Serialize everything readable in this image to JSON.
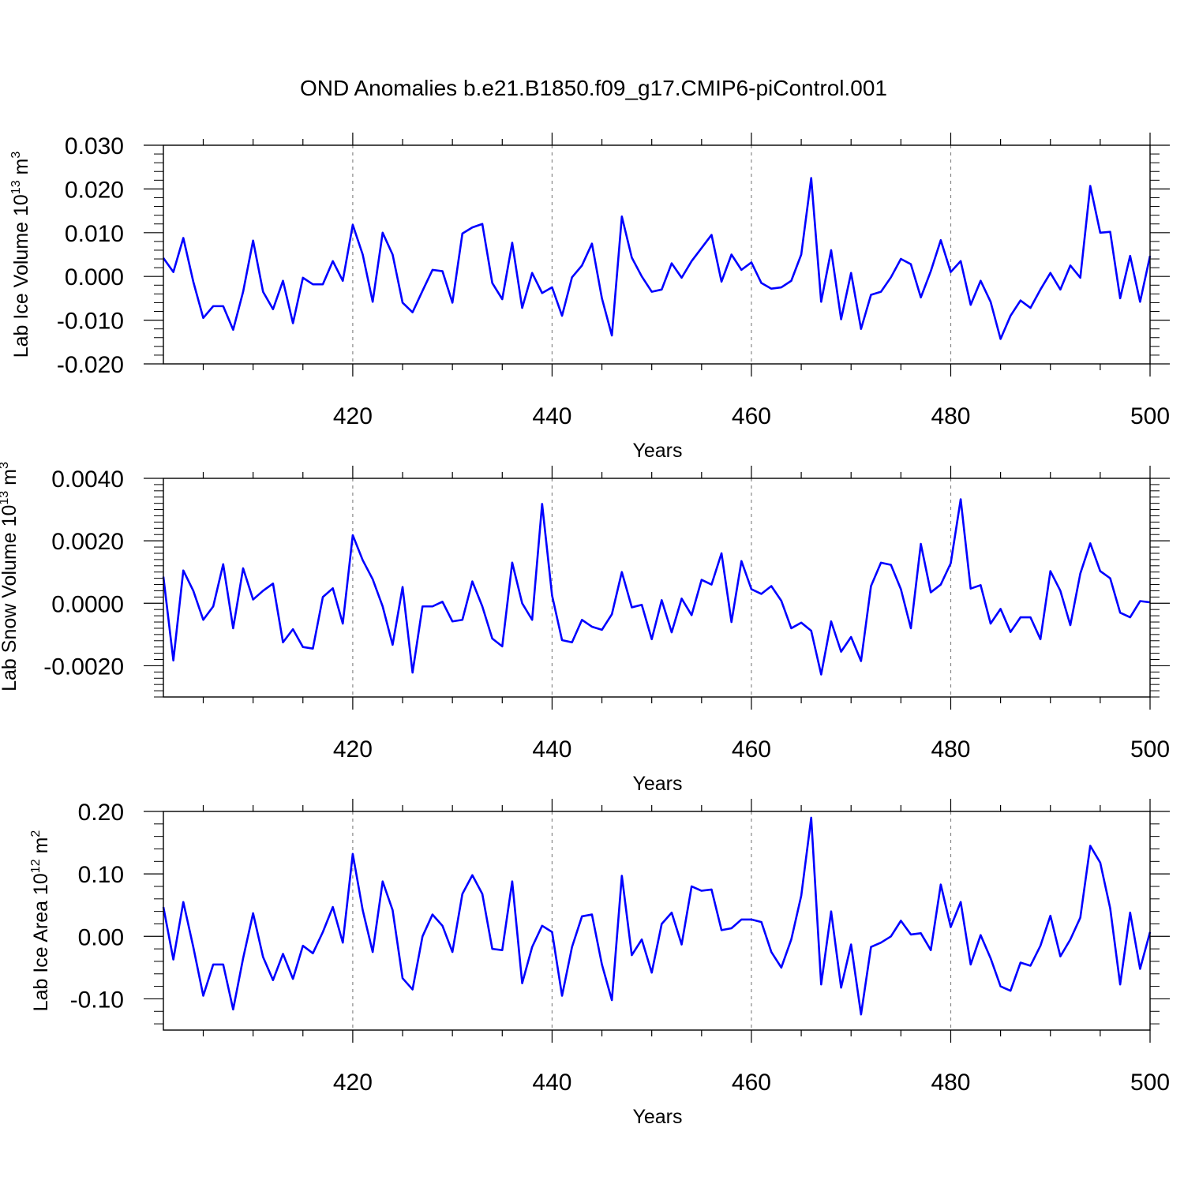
{
  "title": "OND Anomalies b.e21.B1850.f09_g17.CMIP6-piControl.001",
  "colors": {
    "line": "#0000ff",
    "axis": "#000000",
    "grid": "#888888"
  },
  "chart_data": [
    {
      "type": "line",
      "ylabel": "Lab Ice Volume 10",
      "ylabel_exp": "13",
      "ylabel_unit": " m",
      "ylabel_unit_exp": "3",
      "xlabel": "Years",
      "xlim": [
        401,
        500
      ],
      "ylim": [
        -0.02,
        0.03
      ],
      "xticks": [
        420,
        440,
        460,
        480,
        500
      ],
      "xtick_labels": [
        "420",
        "440",
        "460",
        "480",
        "500"
      ],
      "yticks": [
        -0.02,
        -0.01,
        0.0,
        0.01,
        0.02,
        0.03
      ],
      "ytick_labels": [
        "-0.020",
        "-0.010",
        "0.000",
        "0.010",
        "0.020",
        "0.030"
      ],
      "yminor": [
        -0.018,
        -0.016,
        -0.014,
        -0.012,
        -0.008,
        -0.006,
        -0.004,
        -0.002,
        0.002,
        0.004,
        0.006,
        0.008,
        0.012,
        0.014,
        0.016,
        0.018,
        0.022,
        0.024,
        0.026,
        0.028
      ],
      "grid_x": [
        420,
        440,
        460,
        480
      ],
      "x_start": 401,
      "values": [
        0.0042,
        0.001,
        0.0088,
        -0.0012,
        -0.0095,
        -0.0068,
        -0.0068,
        -0.0122,
        -0.0035,
        0.0082,
        -0.0035,
        -0.0075,
        -0.001,
        -0.0107,
        -0.0003,
        -0.0018,
        -0.0018,
        0.0035,
        -0.001,
        0.0118,
        0.005,
        -0.0058,
        0.01,
        0.005,
        -0.006,
        -0.0082,
        -0.0033,
        0.0015,
        0.0012,
        -0.006,
        0.0098,
        0.0112,
        0.012,
        -0.0015,
        -0.0052,
        0.0077,
        -0.0072,
        0.0008,
        -0.0038,
        -0.0025,
        -0.009,
        -0.0002,
        0.0025,
        0.0075,
        -0.005,
        -0.0135,
        0.0137,
        0.0043,
        0.0,
        -0.0035,
        -0.003,
        0.003,
        -0.0003,
        0.0035,
        0.0065,
        0.0095,
        -0.0012,
        0.005,
        0.0015,
        0.0032,
        -0.0015,
        -0.0028,
        -0.0025,
        -0.001,
        0.005,
        0.0225,
        -0.0058,
        0.006,
        -0.0098,
        0.0008,
        -0.012,
        -0.0042,
        -0.0035,
        -0.0002,
        0.004,
        0.0028,
        -0.0048,
        0.0012,
        0.0083,
        0.001,
        0.0035,
        -0.0065,
        -0.001,
        -0.0058,
        -0.0143,
        -0.009,
        -0.0055,
        -0.0072,
        -0.003,
        0.0008,
        -0.003,
        0.0025,
        -0.0003,
        0.0207,
        0.01,
        0.0102,
        -0.005,
        0.0047,
        -0.0058,
        0.0047
      ]
    },
    {
      "type": "line",
      "ylabel": "Lab Snow Volume 10",
      "ylabel_exp": "13",
      "ylabel_unit": " m",
      "ylabel_unit_exp": "3",
      "xlabel": "Years",
      "xlim": [
        401,
        500
      ],
      "ylim": [
        -0.003,
        0.004
      ],
      "xticks": [
        420,
        440,
        460,
        480,
        500
      ],
      "xtick_labels": [
        "420",
        "440",
        "460",
        "480",
        "500"
      ],
      "yticks": [
        -0.002,
        0.0,
        0.002,
        0.004
      ],
      "ytick_labels": [
        "-0.0020",
        "0.0000",
        "0.0020",
        "0.0040"
      ],
      "yminor": [
        -0.003,
        -0.0028,
        -0.0026,
        -0.0024,
        -0.0022,
        -0.0018,
        -0.0016,
        -0.0014,
        -0.0012,
        -0.001,
        -0.0008,
        -0.0006,
        -0.0004,
        -0.0002,
        0.0002,
        0.0004,
        0.0006,
        0.0008,
        0.001,
        0.0012,
        0.0014,
        0.0016,
        0.0018,
        0.0022,
        0.0024,
        0.0026,
        0.0028,
        0.003,
        0.0032,
        0.0034,
        0.0036,
        0.0038
      ],
      "grid_x": [
        420,
        440,
        460,
        480
      ],
      "x_start": 401,
      "values": [
        0.00085,
        -0.00183,
        0.00105,
        0.0004,
        -0.00053,
        -0.0001,
        0.00125,
        -0.0008,
        0.00112,
        0.00012,
        0.0004,
        0.00063,
        -0.00125,
        -0.00083,
        -0.0014,
        -0.00145,
        0.0002,
        0.00048,
        -0.00065,
        0.00218,
        0.00138,
        0.00077,
        -0.0001,
        -0.00133,
        0.00052,
        -0.00222,
        -0.0001,
        -0.0001,
        5e-05,
        -0.00058,
        -0.00053,
        0.0007,
        -0.0001,
        -0.00113,
        -0.00138,
        0.0013,
        0.0,
        -0.00053,
        0.00318,
        0.00025,
        -0.00118,
        -0.00125,
        -0.00053,
        -0.00075,
        -0.00085,
        -0.00035,
        0.001,
        -0.00013,
        -5e-05,
        -0.00115,
        0.0001,
        -0.00093,
        0.00015,
        -0.00038,
        0.00075,
        0.0006,
        0.0016,
        -0.0006,
        0.00135,
        0.00045,
        0.0003,
        0.00055,
        8e-05,
        -0.0008,
        -0.00062,
        -0.00088,
        -0.00228,
        -0.00058,
        -0.00155,
        -0.00108,
        -0.00185,
        0.00055,
        0.0013,
        0.00123,
        0.00045,
        -0.0008,
        0.0019,
        0.00035,
        0.0006,
        0.00128,
        0.00333,
        0.00047,
        0.00058,
        -0.00065,
        -0.00018,
        -0.00092,
        -0.00045,
        -0.00045,
        -0.00115,
        0.00103,
        0.0004,
        -0.0007,
        0.00095,
        0.00192,
        0.00103,
        0.0008,
        -0.0003,
        -0.00045,
        7e-05,
        3e-05
      ]
    },
    {
      "type": "line",
      "ylabel": "Lab Ice Area 10",
      "ylabel_exp": "12",
      "ylabel_unit": " m",
      "ylabel_unit_exp": "2",
      "xlabel": "Years",
      "xlim": [
        401,
        500
      ],
      "ylim": [
        -0.15,
        0.2
      ],
      "xticks": [
        420,
        440,
        460,
        480,
        500
      ],
      "xtick_labels": [
        "420",
        "440",
        "460",
        "480",
        "500"
      ],
      "yticks": [
        -0.1,
        0.0,
        0.1,
        0.2
      ],
      "ytick_labels": [
        "-0.10",
        "0.00",
        "0.10",
        "0.20"
      ],
      "yminor": [
        -0.14,
        -0.12,
        -0.08,
        -0.06,
        -0.04,
        -0.02,
        0.02,
        0.04,
        0.06,
        0.08,
        0.12,
        0.14,
        0.16,
        0.18
      ],
      "grid_x": [
        420,
        440,
        460,
        480
      ],
      "x_start": 401,
      "values": [
        0.047,
        -0.037,
        0.055,
        -0.017,
        -0.095,
        -0.045,
        -0.045,
        -0.117,
        -0.035,
        0.037,
        -0.033,
        -0.07,
        -0.028,
        -0.068,
        -0.015,
        -0.027,
        0.007,
        0.047,
        -0.01,
        0.132,
        0.042,
        -0.025,
        0.088,
        0.042,
        -0.067,
        -0.085,
        0.0,
        0.035,
        0.017,
        -0.025,
        0.068,
        0.098,
        0.068,
        -0.02,
        -0.022,
        0.088,
        -0.075,
        -0.017,
        0.017,
        0.007,
        -0.095,
        -0.017,
        0.032,
        0.035,
        -0.045,
        -0.102,
        0.097,
        -0.03,
        -0.005,
        -0.058,
        0.02,
        0.038,
        -0.013,
        0.08,
        0.073,
        0.075,
        0.01,
        0.013,
        0.027,
        0.027,
        0.023,
        -0.025,
        -0.05,
        -0.005,
        0.065,
        0.19,
        -0.077,
        0.04,
        -0.082,
        -0.013,
        -0.125,
        -0.017,
        -0.01,
        0.0,
        0.025,
        0.003,
        0.005,
        -0.022,
        0.083,
        0.015,
        0.055,
        -0.045,
        0.002,
        -0.035,
        -0.08,
        -0.087,
        -0.042,
        -0.047,
        -0.015,
        0.033,
        -0.032,
        -0.005,
        0.03,
        0.145,
        0.118,
        0.045,
        -0.077,
        0.038,
        -0.052,
        0.007
      ]
    }
  ]
}
